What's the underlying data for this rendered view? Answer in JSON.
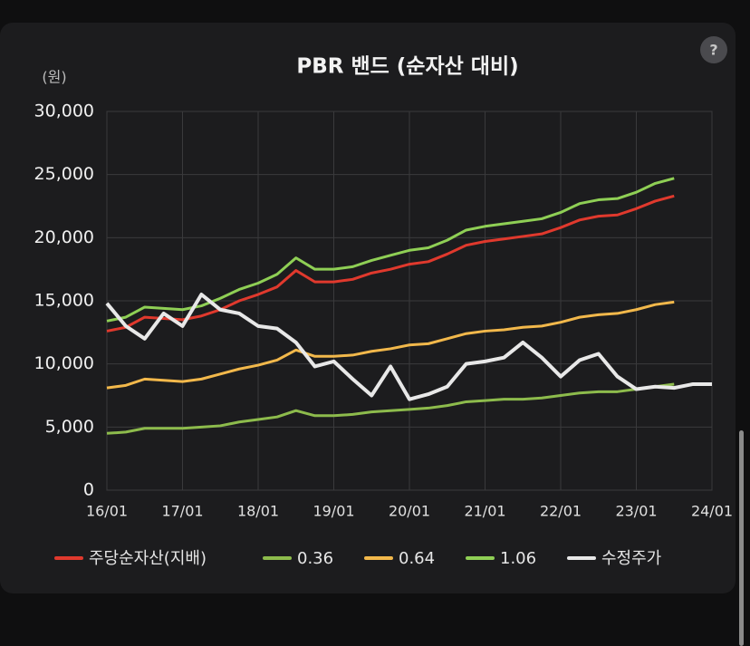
{
  "chart_data": {
    "type": "line",
    "title": "PBR 밴드 (순자산 대비)",
    "y_label": "(원)",
    "help": "?",
    "x": [
      "16/01",
      "16/04",
      "16/07",
      "16/10",
      "17/01",
      "17/04",
      "17/07",
      "17/10",
      "18/01",
      "18/04",
      "18/07",
      "18/10",
      "19/01",
      "19/04",
      "19/07",
      "19/10",
      "20/01",
      "20/04",
      "20/07",
      "20/10",
      "21/01",
      "21/04",
      "21/07",
      "21/10",
      "22/01",
      "22/04",
      "22/07",
      "22/10",
      "23/01",
      "23/04",
      "23/07",
      "23/10",
      "24/01"
    ],
    "xticks": [
      "16/01",
      "17/01",
      "18/01",
      "19/01",
      "20/01",
      "21/01",
      "22/01",
      "23/01",
      "24/01"
    ],
    "ylim": [
      0,
      30000
    ],
    "yticks": [
      0,
      {
        "value": 5000,
        "label": "5,000"
      },
      {
        "value": 10000,
        "label": "10,000"
      },
      {
        "value": 15000,
        "label": "15,000"
      },
      {
        "value": 20000,
        "label": "20,000"
      },
      {
        "value": 25000,
        "label": "25,000"
      },
      {
        "value": 30000,
        "label": "30,000"
      }
    ],
    "grid": true,
    "series": [
      {
        "name": "주당순자산(지배)",
        "color": "#e0392d",
        "values": [
          12600,
          12900,
          13700,
          13600,
          13500,
          13800,
          14300,
          15000,
          15500,
          16100,
          17400,
          16500,
          16500,
          16700,
          17200,
          17500,
          17900,
          18100,
          18700,
          19400,
          19700,
          19900,
          20100,
          20300,
          20800,
          21400,
          21700,
          21800,
          22300,
          22900,
          23300,
          null,
          null
        ]
      },
      {
        "name": "0.36",
        "color": "#8dbb4c",
        "values": [
          4500,
          4600,
          4900,
          4900,
          4900,
          5000,
          5100,
          5400,
          5600,
          5800,
          6300,
          5900,
          5900,
          6000,
          6200,
          6300,
          6400,
          6500,
          6700,
          7000,
          7100,
          7200,
          7200,
          7300,
          7500,
          7700,
          7800,
          7800,
          8000,
          8200,
          8400,
          null,
          null
        ]
      },
      {
        "name": "0.64",
        "color": "#f2b84b",
        "values": [
          8100,
          8300,
          8800,
          8700,
          8600,
          8800,
          9200,
          9600,
          9900,
          10300,
          11100,
          10600,
          10600,
          10700,
          11000,
          11200,
          11500,
          11600,
          12000,
          12400,
          12600,
          12700,
          12900,
          13000,
          13300,
          13700,
          13900,
          14000,
          14300,
          14700,
          14900,
          null,
          null
        ]
      },
      {
        "name": "1.06",
        "color": "#8fcf55",
        "values": [
          13400,
          13700,
          14500,
          14400,
          14300,
          14600,
          15200,
          15900,
          16400,
          17100,
          18400,
          17500,
          17500,
          17700,
          18200,
          18600,
          19000,
          19200,
          19800,
          20600,
          20900,
          21100,
          21300,
          21500,
          22000,
          22700,
          23000,
          23100,
          23600,
          24300,
          24700,
          null,
          null
        ]
      },
      {
        "name": "수정주가",
        "color": "#e8e8e8",
        "values": [
          14800,
          13000,
          12000,
          14000,
          13000,
          15500,
          14300,
          14000,
          13000,
          12800,
          11700,
          9800,
          10200,
          8800,
          7500,
          9800,
          7200,
          7600,
          8200,
          10000,
          10200,
          10500,
          11700,
          10500,
          9000,
          10300,
          10800,
          9000,
          8000,
          8200,
          8100,
          8400,
          8400
        ]
      }
    ]
  }
}
